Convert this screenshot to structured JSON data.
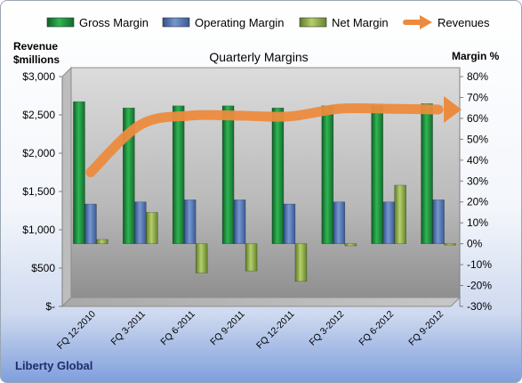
{
  "chart_data": {
    "type": "bar",
    "title": "Quarterly Margins",
    "left_axis_title": [
      "Revenue",
      "$millions"
    ],
    "right_axis_title": "Margin %",
    "categories": [
      "FQ 12-2010",
      "FQ 3-2011",
      "FQ 6-2011",
      "FQ 9-2011",
      "FQ 12-2011",
      "FQ 3-2012",
      "FQ 6-2012",
      "FQ 9-2012"
    ],
    "series": [
      {
        "name": "Gross Margin",
        "axis": "right",
        "kind": "bar",
        "color": "#1f8a3a",
        "values": [
          68,
          65,
          66,
          66,
          65,
          66,
          66,
          67
        ]
      },
      {
        "name": "Operating Margin",
        "axis": "right",
        "kind": "bar",
        "color": "#4f74b3",
        "values": [
          19,
          20,
          21,
          21,
          19,
          20,
          20,
          21
        ]
      },
      {
        "name": "Net Margin",
        "axis": "right",
        "kind": "bar",
        "color": "#8fb04a",
        "values": [
          2,
          15,
          -14,
          -13,
          -18,
          -1,
          28,
          -0.5
        ]
      },
      {
        "name": "Revenues",
        "axis": "left",
        "kind": "line",
        "color": "#ec8b3e",
        "values": [
          1750,
          2370,
          2490,
          2490,
          2480,
          2580,
          2580,
          2570
        ]
      }
    ],
    "y_left": {
      "min": 0,
      "max": 3000,
      "step": 500,
      "ticks": [
        "$-",
        "$500",
        "$1,000",
        "$1,500",
        "$2,000",
        "$2,500",
        "$3,000"
      ]
    },
    "y_right": {
      "min": -30,
      "max": 80,
      "step": 10,
      "ticks": [
        "-30%",
        "-20%",
        "-10%",
        "0%",
        "10%",
        "20%",
        "30%",
        "40%",
        "50%",
        "60%",
        "70%",
        "80%"
      ]
    },
    "legend_position": "top",
    "grid": false
  },
  "footer": {
    "company": "Liberty Global"
  }
}
